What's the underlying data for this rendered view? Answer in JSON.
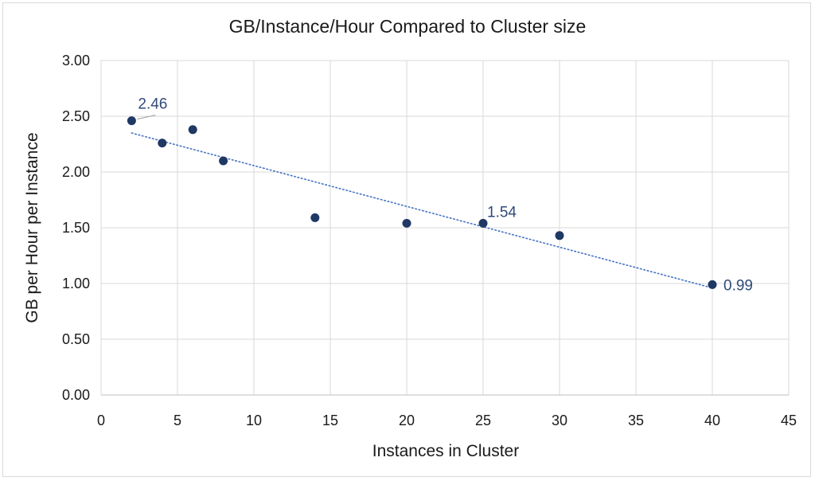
{
  "chart_data": {
    "type": "scatter",
    "title": "GB/Instance/Hour Compared to Cluster size",
    "xlabel": "Instances in Cluster",
    "ylabel": "GB per Hour per Instance",
    "xlim": [
      0,
      45
    ],
    "ylim": [
      0,
      3
    ],
    "x_ticks": [
      "0",
      "5",
      "10",
      "15",
      "20",
      "25",
      "30",
      "35",
      "40",
      "45"
    ],
    "y_ticks": [
      "0.00",
      "0.50",
      "1.00",
      "1.50",
      "2.00",
      "2.50",
      "3.00"
    ],
    "grid": true,
    "legend": "none",
    "series": [
      {
        "x": [
          2,
          4,
          6,
          8,
          14,
          20,
          25,
          30,
          40
        ],
        "y": [
          2.46,
          2.26,
          2.38,
          2.1,
          1.59,
          1.54,
          1.54,
          1.43,
          0.99
        ]
      }
    ],
    "trendline": {
      "type": "linear",
      "style": "dotted",
      "from": [
        2,
        2.35
      ],
      "to": [
        40,
        0.96
      ]
    },
    "data_labels": [
      {
        "x": 2,
        "y": 2.46,
        "text": "2.46"
      },
      {
        "x": 25,
        "y": 1.54,
        "text": "1.54"
      },
      {
        "x": 40,
        "y": 0.99,
        "text": "0.99"
      }
    ],
    "colors": {
      "marker": "#1f3864",
      "trendline": "#4472c4",
      "label": "#2f4a7a",
      "grid": "#d9d9d9"
    }
  }
}
